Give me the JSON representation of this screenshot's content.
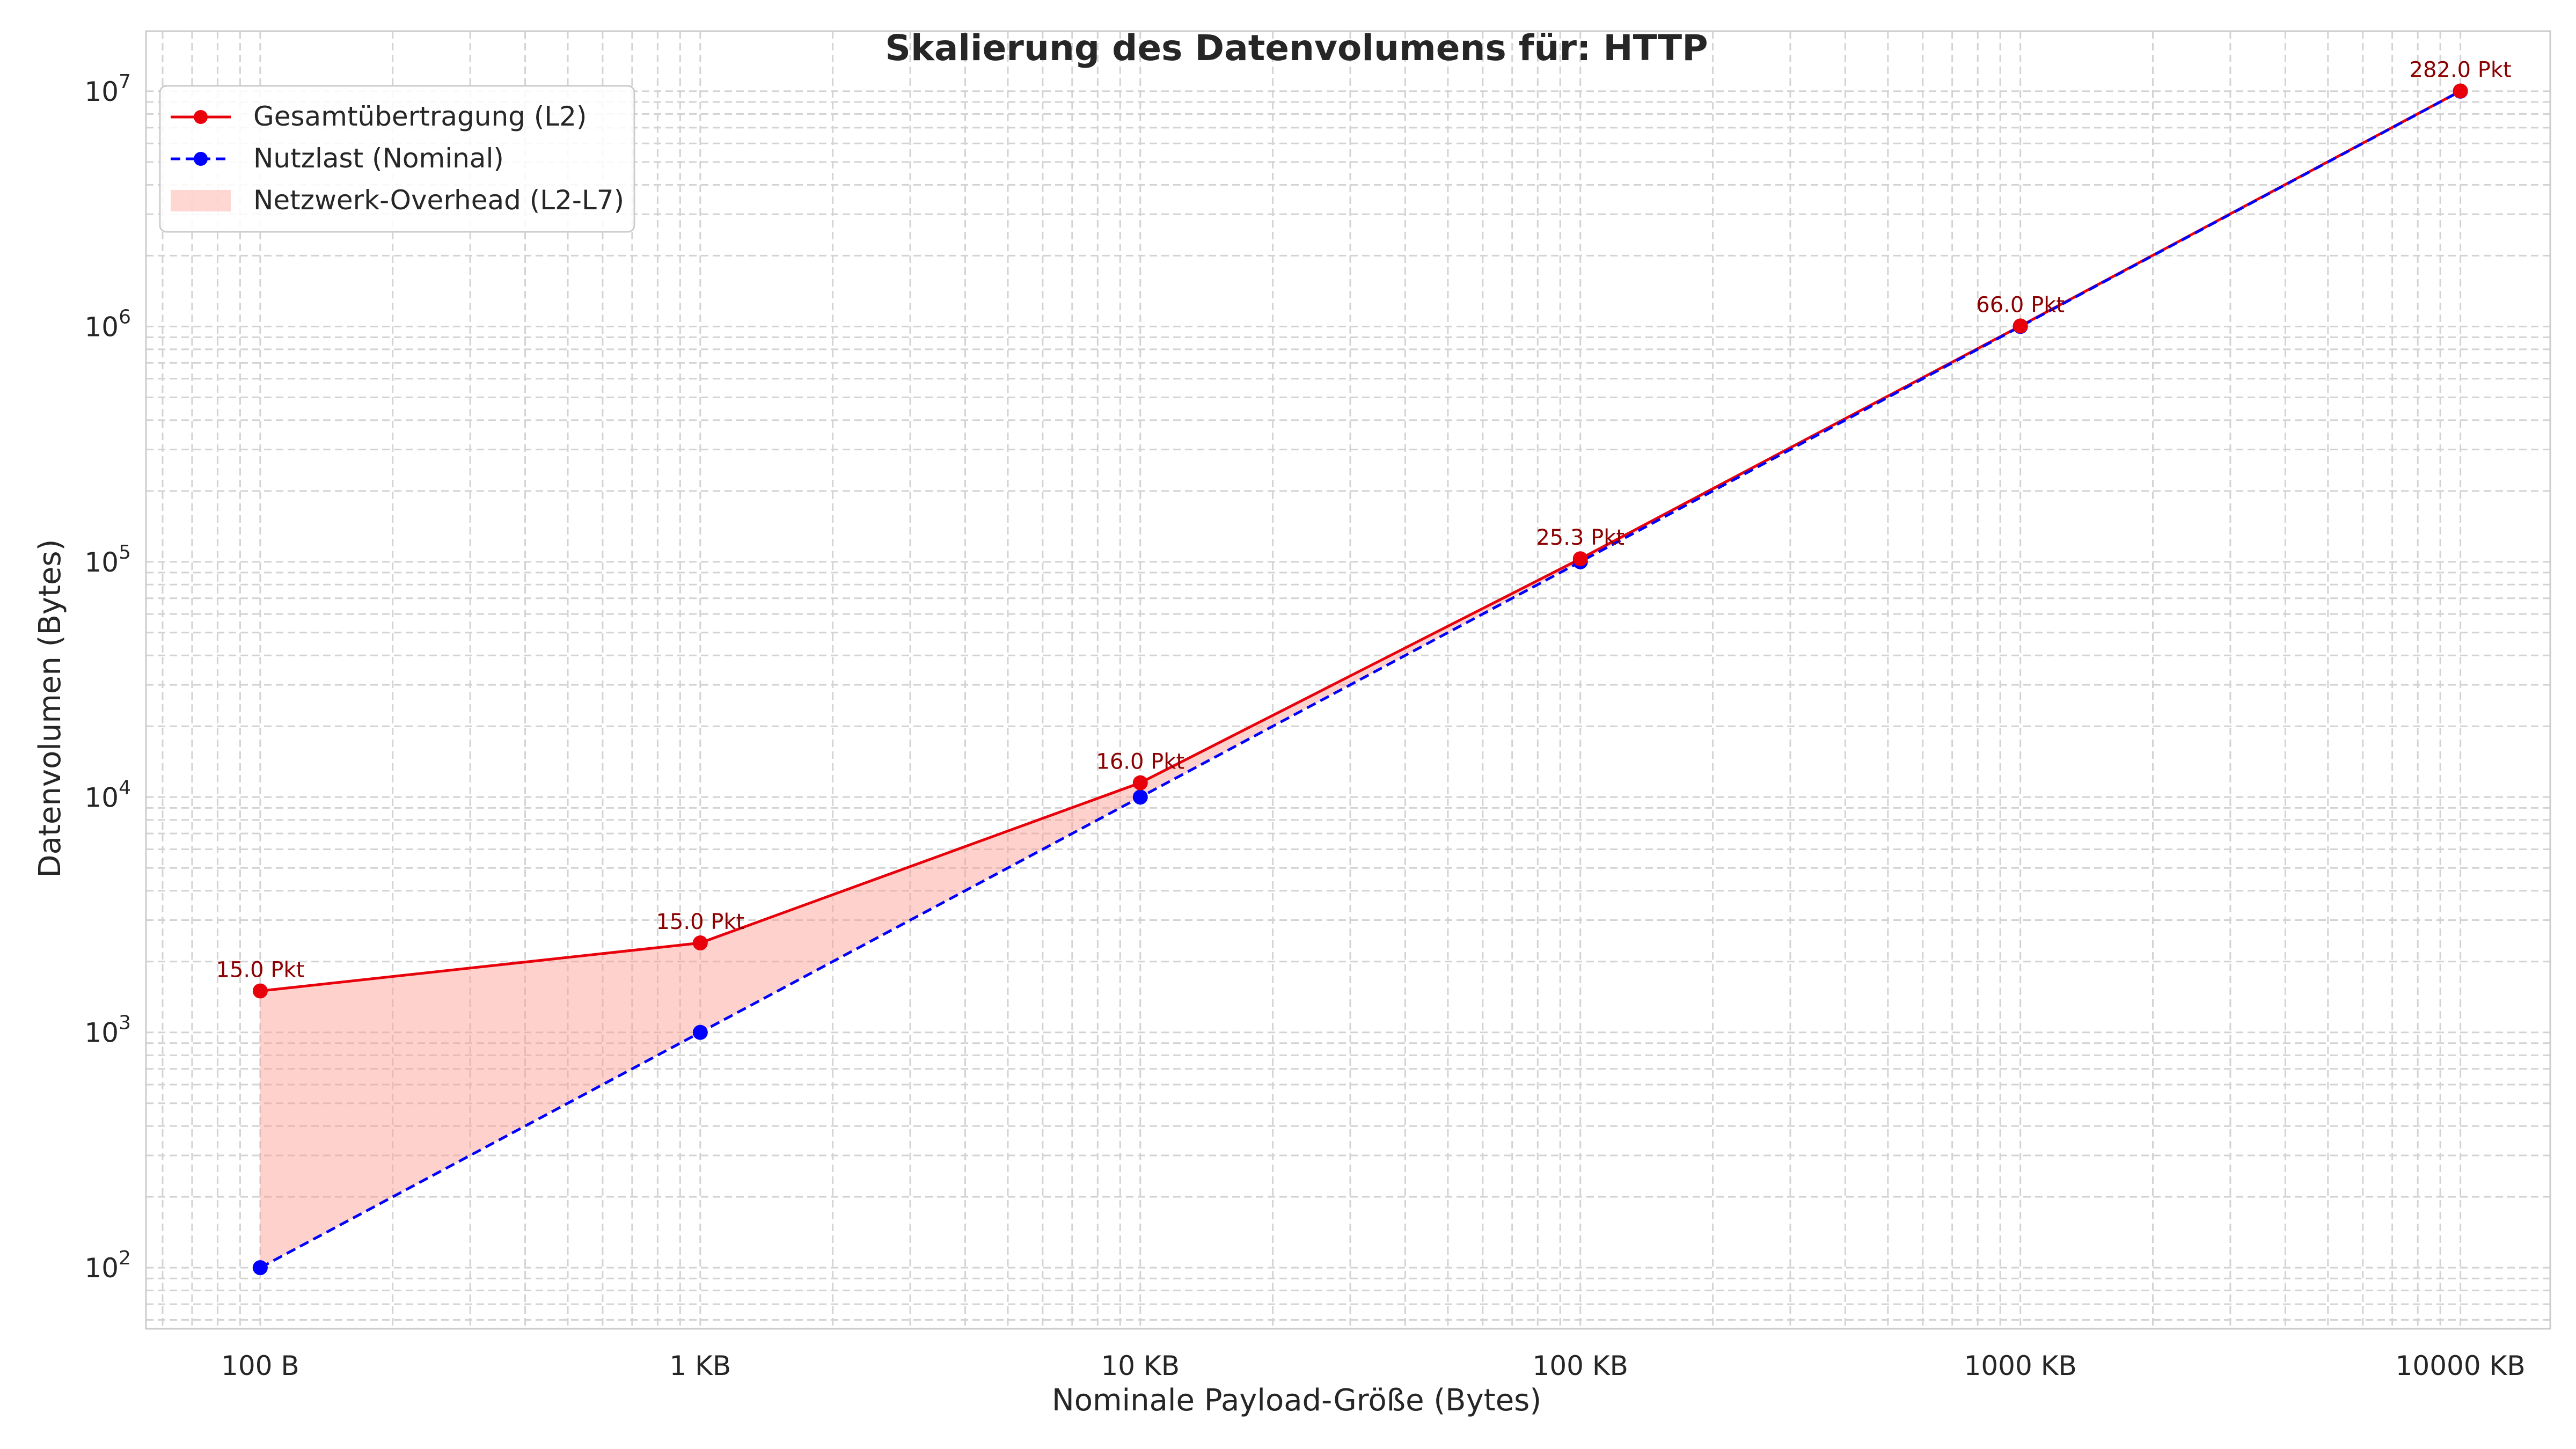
{
  "chart_data": {
    "type": "line",
    "title": "Skalierung des Datenvolumens für: HTTP",
    "xlabel": "Nominale Payload-Größe (Bytes)",
    "ylabel": "Datenvolumen (Bytes)",
    "x_scale": "log",
    "y_scale": "log",
    "xlim": [
      55,
      16000000
    ],
    "ylim": [
      55,
      18000000
    ],
    "grid": true,
    "legend_position": "top-left",
    "x_ticks": [
      {
        "value": 100,
        "label": "100 B"
      },
      {
        "value": 1000,
        "label": "1 KB"
      },
      {
        "value": 10000,
        "label": "10 KB"
      },
      {
        "value": 100000,
        "label": "100 KB"
      },
      {
        "value": 1000000,
        "label": "1000 KB"
      },
      {
        "value": 10000000,
        "label": "10000 KB"
      }
    ],
    "y_ticks": [
      {
        "value": 100,
        "base": "10",
        "exp": "2"
      },
      {
        "value": 1000,
        "base": "10",
        "exp": "3"
      },
      {
        "value": 10000,
        "base": "10",
        "exp": "4"
      },
      {
        "value": 100000,
        "base": "10",
        "exp": "5"
      },
      {
        "value": 1000000,
        "base": "10",
        "exp": "6"
      },
      {
        "value": 10000000,
        "base": "10",
        "exp": "7"
      }
    ],
    "x": [
      100,
      1000,
      10000,
      100000,
      1000000,
      10000000
    ],
    "series": [
      {
        "name": "Gesamtübertragung (L2)",
        "color": "#e8000b",
        "style": "solid",
        "values": [
          1500,
          2400,
          11500,
          103000,
          1005000,
          10020000
        ]
      },
      {
        "name": "Nutzlast (Nominal)",
        "color": "#0000ff",
        "style": "dashed",
        "values": [
          100,
          1000,
          10000,
          100000,
          1000000,
          10000000
        ]
      }
    ],
    "fill": {
      "name": "Netzwerk-Overhead (L2-L7)",
      "color": "#ff9a8f",
      "between": [
        "Gesamtübertragung (L2)",
        "Nutzlast (Nominal)"
      ]
    },
    "annotations": [
      "15.0 Pkt",
      "15.0 Pkt",
      "16.0 Pkt",
      "25.3 Pkt",
      "66.0 Pkt",
      "282.0 Pkt"
    ]
  }
}
